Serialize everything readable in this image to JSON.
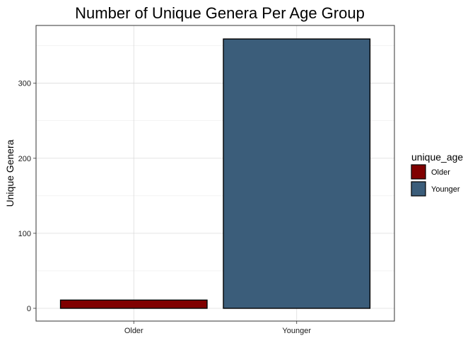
{
  "chart_data": {
    "type": "bar",
    "title": "Number of Unique Genera Per Age Group",
    "xlabel": "",
    "ylabel": "Unique Genera",
    "categories": [
      "Older",
      "Younger"
    ],
    "values": [
      11,
      359
    ],
    "ylim": [
      -17,
      377
    ],
    "yticks": [
      0,
      100,
      200,
      300
    ],
    "grid": true,
    "legend": {
      "title": "unique_age",
      "placement": "right",
      "entries": [
        {
          "label": "Older",
          "color": "#800000"
        },
        {
          "label": "Younger",
          "color": "#3b5d7a"
        }
      ]
    },
    "colors": [
      "#800000",
      "#3b5d7a"
    ]
  }
}
